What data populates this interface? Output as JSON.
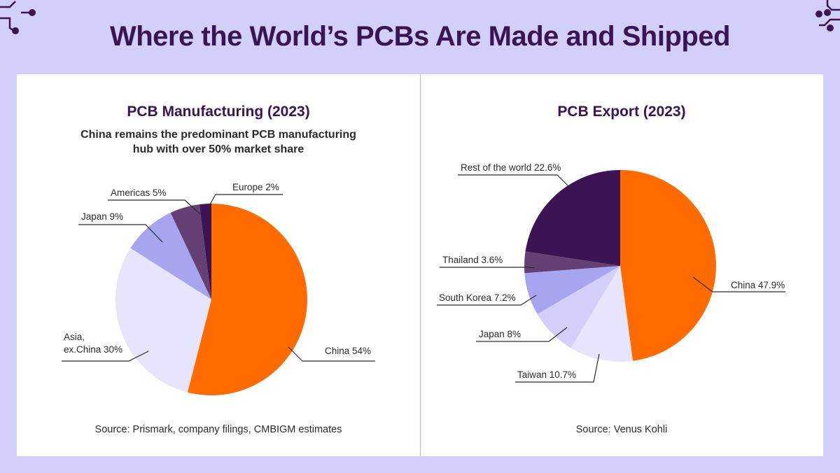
{
  "title": "Where the World’s PCBs Are Made and Shipped",
  "colors": {
    "background": "#d2cffb",
    "title": "#3b1454",
    "orange": "#ff6b00",
    "pale": "#e6e5fd",
    "lavender": "#a8a5f0",
    "plum": "#654077",
    "dark": "#3c1453"
  },
  "icons": [
    "circuit-trace-icon-left",
    "circuit-trace-icon-right"
  ],
  "chart_data": [
    {
      "type": "pie",
      "title": "PCB Manufacturing (2023)",
      "subtitle_lines": [
        "China remains the predominant PCB manufacturing",
        "hub with over 50% market share"
      ],
      "source": "Source: Prismark, company filings, CMBIGM estimates",
      "slices": [
        {
          "label": "China 54%",
          "value": 54,
          "color": "#ff6b00"
        },
        {
          "label_lines": [
            "Asia,",
            "ex.China 30%"
          ],
          "value": 30,
          "color": "#e6e5fd"
        },
        {
          "label": "Japan 9%",
          "value": 9,
          "color": "#a8a5f0"
        },
        {
          "label": "Americas 5%",
          "value": 5,
          "color": "#654077"
        },
        {
          "label": "Europe 2%",
          "value": 2,
          "color": "#3c1453"
        }
      ]
    },
    {
      "type": "pie",
      "title": "PCB Export (2023)",
      "source": "Source: Venus Kohli",
      "slices": [
        {
          "label": "China 47.9%",
          "value": 47.9,
          "color": "#ff6b00"
        },
        {
          "label": "Taiwan 10.7%",
          "value": 10.7,
          "color": "#e6e5fd"
        },
        {
          "label": "Japan 8%",
          "value": 8,
          "color": "#d2cffb"
        },
        {
          "label": "South Korea 7.2%",
          "value": 7.2,
          "color": "#a8a5f0"
        },
        {
          "label": "Thailand 3.6%",
          "value": 3.6,
          "color": "#654077"
        },
        {
          "label": "Rest of the world 22.6%",
          "value": 22.6,
          "color": "#3c1453"
        }
      ]
    }
  ]
}
